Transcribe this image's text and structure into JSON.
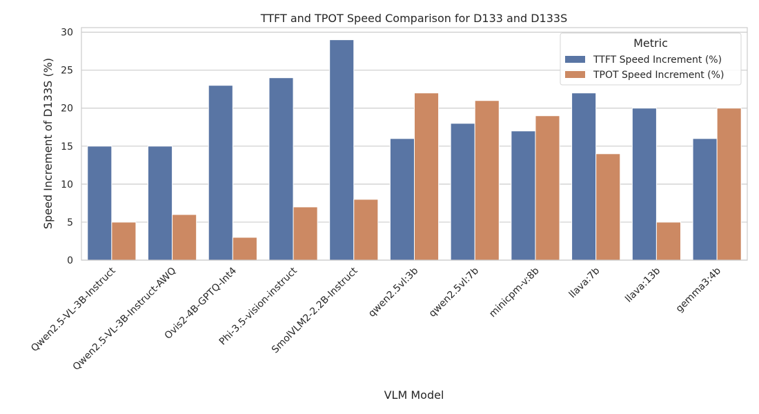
{
  "chart_data": {
    "type": "bar",
    "title": "TTFT and TPOT Speed Comparison for D133 and D133S",
    "xlabel": "VLM Model",
    "ylabel": "Speed Increment of D133S (%)",
    "ylim": [
      0,
      30.6
    ],
    "yticks": [
      0,
      5,
      10,
      15,
      20,
      25,
      30
    ],
    "grid": "horizontal",
    "legend": {
      "title": "Metric",
      "placement": "top-right"
    },
    "categories": [
      "Qwen2.5-VL-3B-Instruct",
      "Qwen2.5-VL-3B-Instruct-AWQ",
      "Ovis2-4B-GPTQ-Int4",
      "Phi-3.5-vision-instruct",
      "SmolVLM2-2.2B-Instruct",
      "qwen2.5vl:3b",
      "qwen2.5vl:7b",
      "minicpm-v:8b",
      "llava:7b",
      "llava:13b",
      "gemma3:4b"
    ],
    "series": [
      {
        "name": "TTFT Speed Increment (%)",
        "color": "#5975a4",
        "values": [
          15,
          15,
          23,
          24,
          29,
          16,
          18,
          17,
          22,
          20,
          16
        ]
      },
      {
        "name": "TPOT Speed Increment (%)",
        "color": "#cc8963",
        "values": [
          5,
          6,
          3,
          7,
          8,
          22,
          21,
          19,
          14,
          5,
          20
        ]
      }
    ]
  }
}
